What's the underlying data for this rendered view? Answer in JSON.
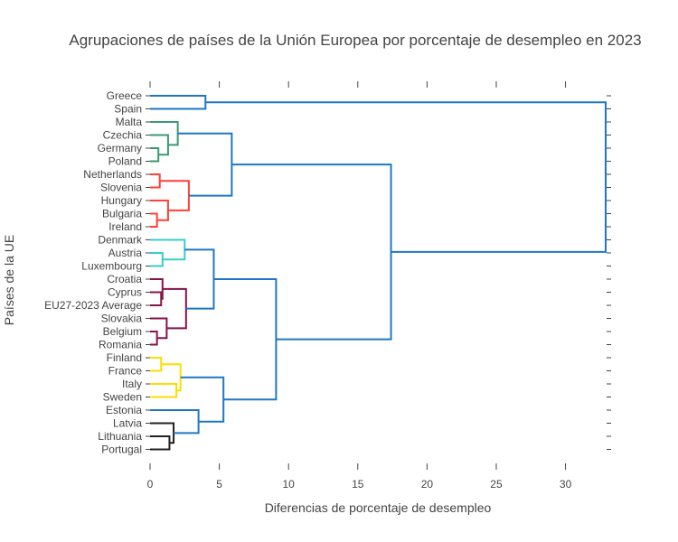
{
  "chart_data": {
    "type": "dendrogram",
    "orientation": "horizontal",
    "title": "Agrupaciones de países de la Unión Europea por porcentaje de desempleo en 2023",
    "xlabel": "Diferencias de porcentaje de desempleo",
    "ylabel": "Países de la UE",
    "xlim": [
      -0.5,
      33
    ],
    "x_ticks": [
      0,
      5,
      10,
      15,
      20,
      25,
      30
    ],
    "x_tick_labels": [
      "0",
      "5",
      "10",
      "15",
      "20",
      "25",
      "30"
    ],
    "leaves": [
      "Greece",
      "Spain",
      "Malta",
      "Czechia",
      "Germany",
      "Poland",
      "Netherlands",
      "Slovenia",
      "Hungary",
      "Bulgaria",
      "Ireland",
      "Denmark",
      "Austria",
      "Luxembourg",
      "Croatia",
      "Cyprus",
      "EU27-2023 Average",
      "Slovakia",
      "Belgium",
      "Romania",
      "Finland",
      "France",
      "Italy",
      "Sweden",
      "Estonia",
      "Latvia",
      "Lithuania",
      "Portugal"
    ],
    "colors": {
      "blue": "#1f77c4",
      "green": "#3d9970",
      "red": "#ff4136",
      "cyan": "#39cccc",
      "maroon": "#85144b",
      "yellow": "#ffdc00",
      "black": "#222222"
    },
    "merges": [
      {
        "a": "Greece",
        "b": "Spain",
        "distance": 4.0,
        "color": "blue"
      },
      {
        "a": "Germany",
        "b": "Poland",
        "distance": 0.6,
        "color": "green"
      },
      {
        "a": "Czechia",
        "b": "Germany+Poland",
        "distance": 1.3,
        "color": "green"
      },
      {
        "a": "Malta",
        "b": "Czechia+Germany+Poland",
        "distance": 2.0,
        "color": "green"
      },
      {
        "a": "Netherlands",
        "b": "Slovenia",
        "distance": 0.7,
        "color": "red"
      },
      {
        "a": "Bulgaria",
        "b": "Ireland",
        "distance": 0.5,
        "color": "red"
      },
      {
        "a": "Hungary",
        "b": "Bulgaria+Ireland",
        "distance": 1.3,
        "color": "red"
      },
      {
        "a": "Netherlands+Slovenia",
        "b": "Hungary+Bulgaria+Ireland",
        "distance": 2.8,
        "color": "red"
      },
      {
        "a": "Malta-group",
        "b": "Netherlands-group",
        "distance": 5.9,
        "color": "blue"
      },
      {
        "a": "Austria",
        "b": "Luxembourg",
        "distance": 0.9,
        "color": "cyan"
      },
      {
        "a": "Denmark",
        "b": "Austria+Luxembourg",
        "distance": 2.5,
        "color": "cyan"
      },
      {
        "a": "Cyprus",
        "b": "EU27-2023 Average",
        "distance": 0.8,
        "color": "maroon"
      },
      {
        "a": "Croatia",
        "b": "Cyprus+EU27-2023 Average",
        "distance": 0.9,
        "color": "maroon"
      },
      {
        "a": "Belgium",
        "b": "Romania",
        "distance": 0.5,
        "color": "maroon"
      },
      {
        "a": "Slovakia",
        "b": "Belgium+Romania",
        "distance": 1.2,
        "color": "maroon"
      },
      {
        "a": "Croatia-group",
        "b": "Slovakia-group",
        "distance": 2.6,
        "color": "maroon"
      },
      {
        "a": "Denmark-group",
        "b": "Croatia-group+Slovakia-group",
        "distance": 4.6,
        "color": "blue"
      },
      {
        "a": "Finland",
        "b": "France",
        "distance": 0.8,
        "color": "yellow"
      },
      {
        "a": "Italy",
        "b": "Sweden",
        "distance": 1.9,
        "color": "yellow"
      },
      {
        "a": "Finland+France",
        "b": "Italy+Sweden",
        "distance": 2.2,
        "color": "yellow"
      },
      {
        "a": "Lithuania",
        "b": "Portugal",
        "distance": 1.4,
        "color": "black"
      },
      {
        "a": "Latvia",
        "b": "Lithuania+Portugal",
        "distance": 1.7,
        "color": "black"
      },
      {
        "a": "Estonia",
        "b": "Latvia+Lithuania+Portugal",
        "distance": 3.5,
        "color": "blue"
      },
      {
        "a": "Finland-group",
        "b": "Estonia-group",
        "distance": 5.3,
        "color": "blue"
      },
      {
        "a": "Denmark..Romania",
        "b": "Finland..Portugal",
        "distance": 9.1,
        "color": "blue"
      },
      {
        "a": "Malta..Ireland",
        "b": "Denmark..Portugal",
        "distance": 17.4,
        "color": "blue"
      },
      {
        "a": "Greece+Spain",
        "b": "Malta..Portugal",
        "distance": 32.9,
        "color": "blue"
      }
    ]
  }
}
